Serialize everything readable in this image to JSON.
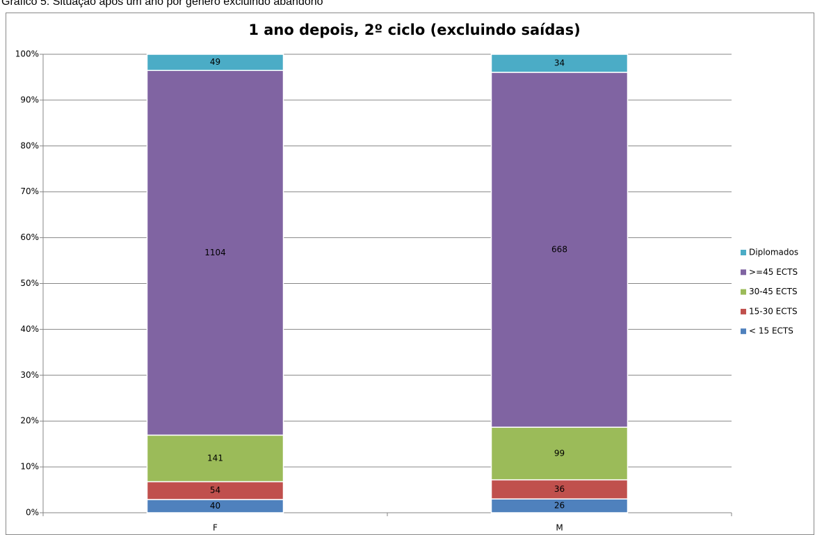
{
  "caption": "Gráfico 5: Situação após um ano por género excluindo abandono",
  "chart_data": {
    "type": "bar",
    "stacking": "percent",
    "title": "1 ano depois, 2º ciclo (excluindo saídas)",
    "categories": [
      "F",
      "M"
    ],
    "series": [
      {
        "name": "< 15 ECTS",
        "color": "#4f81bd",
        "values": [
          40,
          26
        ]
      },
      {
        "name": "15-30 ECTS",
        "color": "#c0504d",
        "values": [
          54,
          36
        ]
      },
      {
        "name": "30-45 ECTS",
        "color": "#9bbb59",
        "values": [
          141,
          99
        ]
      },
      {
        "name": ">=45 ECTS",
        "color": "#8064a2",
        "values": [
          1104,
          668
        ]
      },
      {
        "name": "Diplomados",
        "color": "#4bacc6",
        "values": [
          49,
          34
        ]
      }
    ],
    "ylim": [
      0,
      100
    ],
    "yticks": [
      {
        "value": 0,
        "label": "0%"
      },
      {
        "value": 10,
        "label": "10%"
      },
      {
        "value": 20,
        "label": "20%"
      },
      {
        "value": 30,
        "label": "30%"
      },
      {
        "value": 40,
        "label": "40%"
      },
      {
        "value": 50,
        "label": "50%"
      },
      {
        "value": 60,
        "label": "60%"
      },
      {
        "value": 70,
        "label": "70%"
      },
      {
        "value": 80,
        "label": "80%"
      },
      {
        "value": 90,
        "label": "90%"
      },
      {
        "value": 100,
        "label": "100%"
      }
    ],
    "grid": true,
    "legend": "right"
  }
}
